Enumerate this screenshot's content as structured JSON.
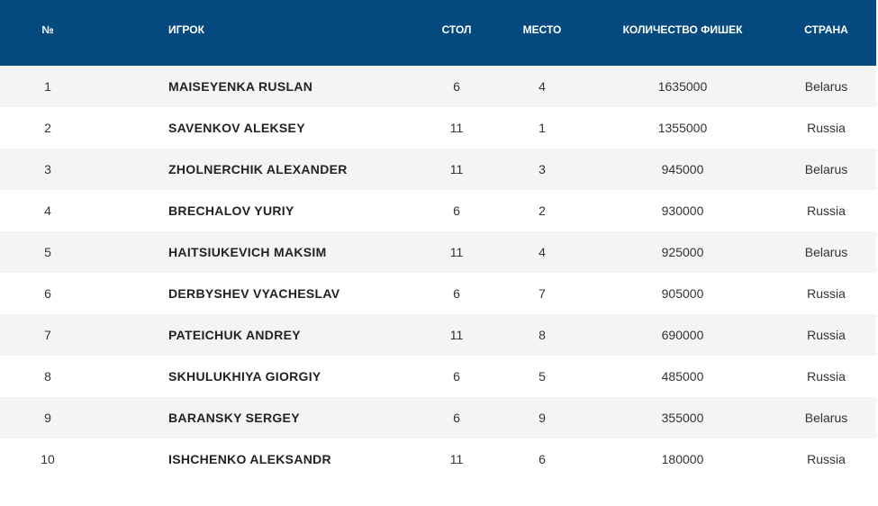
{
  "table": {
    "headers": {
      "num": "№",
      "player": "ИГРОК",
      "table": "СТОЛ",
      "place": "МЕСТО",
      "chips": "КОЛИЧЕСТВО ФИШЕК",
      "country": "СТРАНА"
    },
    "rows": [
      {
        "num": "1",
        "player": "MAISEYENKA RUSLAN",
        "table": "6",
        "place": "4",
        "chips": "1635000",
        "country": "Belarus"
      },
      {
        "num": "2",
        "player": "SAVENKOV ALEKSEY",
        "table": "11",
        "place": "1",
        "chips": "1355000",
        "country": "Russia"
      },
      {
        "num": "3",
        "player": "ZHOLNERCHIK ALEXANDER",
        "table": "11",
        "place": "3",
        "chips": "945000",
        "country": "Belarus"
      },
      {
        "num": "4",
        "player": "BRECHALOV YURIY",
        "table": "6",
        "place": "2",
        "chips": "930000",
        "country": "Russia"
      },
      {
        "num": "5",
        "player": "HAITSIUKEVICH MAKSIM",
        "table": "11",
        "place": "4",
        "chips": "925000",
        "country": "Belarus"
      },
      {
        "num": "6",
        "player": "DERBYSHEV VYACHESLAV",
        "table": "6",
        "place": "7",
        "chips": "905000",
        "country": "Russia"
      },
      {
        "num": "7",
        "player": "PATEICHUK ANDREY",
        "table": "11",
        "place": "8",
        "chips": "690000",
        "country": "Russia"
      },
      {
        "num": "8",
        "player": "SKHULUKHIYA GIORGIY",
        "table": "6",
        "place": "5",
        "chips": "485000",
        "country": "Russia"
      },
      {
        "num": "9",
        "player": "BARANSKY SERGEY",
        "table": "6",
        "place": "9",
        "chips": "355000",
        "country": "Belarus"
      },
      {
        "num": "10",
        "player": "ISHCHENKO ALEKSANDR",
        "table": "11",
        "place": "6",
        "chips": "180000",
        "country": "Russia"
      }
    ]
  },
  "colors": {
    "header_bg": "#054a7e",
    "row_alt_bg": "#f4f4f4"
  }
}
